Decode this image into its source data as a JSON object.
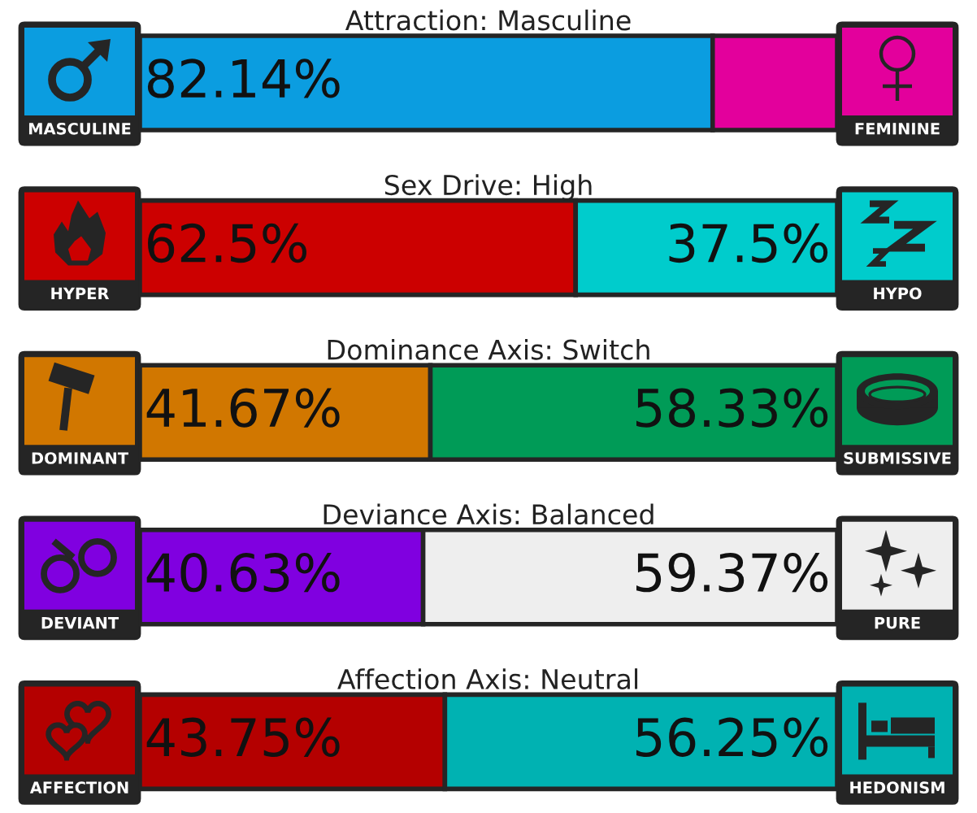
{
  "chart_data": [
    {
      "type": "bar",
      "orientation": "horizontal",
      "stacked": true,
      "title": "Attraction: Masculine",
      "categories": [
        null
      ],
      "xlim": [
        0,
        100
      ],
      "tick_labels": false,
      "series": [
        {
          "name": "MASCULINE",
          "color": "#0b9de0",
          "values": [
            82.14
          ],
          "value_labels": [
            "82.14%"
          ]
        },
        {
          "name": "FEMININE",
          "color": "#e3009c",
          "values": [
            17.86
          ],
          "value_labels": [
            null
          ]
        }
      ]
    },
    {
      "type": "bar",
      "orientation": "horizontal",
      "stacked": true,
      "title": "Sex Drive: High",
      "categories": [
        null
      ],
      "xlim": [
        0,
        100
      ],
      "tick_labels": false,
      "series": [
        {
          "name": "HYPER",
          "color": "#cc0000",
          "values": [
            62.5
          ],
          "value_labels": [
            "62.5%"
          ]
        },
        {
          "name": "HYPO",
          "color": "#00cccc",
          "values": [
            37.5
          ],
          "value_labels": [
            "37.5%"
          ]
        }
      ]
    },
    {
      "type": "bar",
      "orientation": "horizontal",
      "stacked": true,
      "title": "Dominance Axis: Switch",
      "categories": [
        null
      ],
      "xlim": [
        0,
        100
      ],
      "tick_labels": false,
      "series": [
        {
          "name": "DOMINANT",
          "color": "#d17700",
          "values": [
            41.67
          ],
          "value_labels": [
            "41.67%"
          ]
        },
        {
          "name": "SUBMISSIVE",
          "color": "#009b57",
          "values": [
            58.33
          ],
          "value_labels": [
            "58.33%"
          ]
        }
      ]
    },
    {
      "type": "bar",
      "orientation": "horizontal",
      "stacked": true,
      "title": "Deviance Axis: Balanced",
      "categories": [
        null
      ],
      "xlim": [
        0,
        100
      ],
      "tick_labels": false,
      "series": [
        {
          "name": "DEVIANT",
          "color": "#8000e0",
          "values": [
            40.63
          ],
          "value_labels": [
            "40.63%"
          ]
        },
        {
          "name": "PURE",
          "color": "#eeeeee",
          "values": [
            59.37
          ],
          "value_labels": [
            "59.37%"
          ]
        }
      ]
    },
    {
      "type": "bar",
      "orientation": "horizontal",
      "stacked": true,
      "title": "Affection Axis: Neutral",
      "categories": [
        null
      ],
      "xlim": [
        0,
        100
      ],
      "tick_labels": false,
      "series": [
        {
          "name": "AFFECTION",
          "color": "#b40000",
          "values": [
            43.75
          ],
          "value_labels": [
            "43.75%"
          ]
        },
        {
          "name": "HEDONISM",
          "color": "#00b2b2",
          "values": [
            56.25
          ],
          "value_labels": [
            "56.25%"
          ]
        }
      ]
    }
  ]
}
